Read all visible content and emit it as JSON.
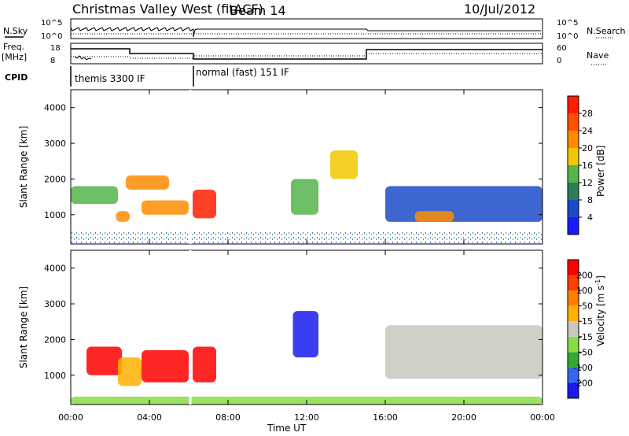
{
  "header": {
    "title": "Christmas Valley West (fitACF)",
    "beam": "Beam 14",
    "date": "10/Jul/2012"
  },
  "panels": {
    "nsky_label": "N.Sky",
    "nsky_ticks": [
      "10^5",
      "10^0"
    ],
    "nsearch_label": "N.Search",
    "nsearch_ticks": [
      "10^5",
      "10^0"
    ],
    "freq_label": "Freq.",
    "freq_unit": "[MHz]",
    "freq_ticks": [
      "18",
      "8"
    ],
    "nave_label": "Nave",
    "nave_ticks": [
      "60",
      "0"
    ],
    "cpid_label": "CPID",
    "cpid_modes": [
      "themis 3300 IF",
      "normal (fast) 151 IF"
    ]
  },
  "colorbars": {
    "power": {
      "title": "Power [dB]",
      "ticks": [
        "4",
        "8",
        "12",
        "16",
        "20",
        "24",
        "28"
      ],
      "colors": [
        "#1a1aff",
        "#1c4bc8",
        "#2b7e5a",
        "#55b44a",
        "#f0c800",
        "#ff8c00",
        "#ff5000",
        "#ff1e00"
      ]
    },
    "velocity": {
      "title": "Velocity [m s",
      "title_exp": "-1",
      "title_end": "]",
      "ticks": [
        "200",
        "100",
        "50",
        "15",
        "-15",
        "-50",
        "-100",
        "-200"
      ],
      "colors": [
        "#1a1aee",
        "#3366ee",
        "#33aa33",
        "#88dd44",
        "#c8c8c0",
        "#ffb000",
        "#ff8000",
        "#ff4000",
        "#ff0000"
      ]
    }
  },
  "chart_data": {
    "type": "heatmap",
    "xlabel": "Time UT",
    "x_ticks": [
      "00:00",
      "04:00",
      "08:00",
      "12:00",
      "16:00",
      "20:00",
      "00:00"
    ],
    "xlim_hours": [
      0,
      24
    ],
    "ylabel": "Slant Range [km]",
    "y_ticks": [
      1000,
      2000,
      3000,
      4000
    ],
    "ylim_km": [
      180,
      4500
    ],
    "mode_change_hour": 6.1,
    "search_mode_change_hour": 15.1,
    "scatter_regions_power": [
      {
        "t0": 0.0,
        "t1": 2.4,
        "r0": 1300,
        "r1": 1800,
        "level": "green"
      },
      {
        "t0": 2.3,
        "t1": 3.0,
        "r0": 800,
        "r1": 1100,
        "level": "orange"
      },
      {
        "t0": 2.8,
        "t1": 5.0,
        "r0": 1700,
        "r1": 2100,
        "level": "orange"
      },
      {
        "t0": 3.6,
        "t1": 6.0,
        "r0": 1000,
        "r1": 1400,
        "level": "orange"
      },
      {
        "t0": 6.2,
        "t1": 7.4,
        "r0": 900,
        "r1": 1700,
        "level": "red"
      },
      {
        "t0": 11.2,
        "t1": 12.6,
        "r0": 1000,
        "r1": 2000,
        "level": "green"
      },
      {
        "t0": 13.2,
        "t1": 14.6,
        "r0": 2000,
        "r1": 2800,
        "level": "yellow"
      },
      {
        "t0": 16.0,
        "t1": 24.0,
        "r0": 800,
        "r1": 1800,
        "level": "blue"
      },
      {
        "t0": 17.5,
        "t1": 19.5,
        "r0": 800,
        "r1": 1100,
        "level": "orange"
      }
    ],
    "scatter_regions_velocity": [
      {
        "t0": 0.8,
        "t1": 2.6,
        "r0": 1000,
        "r1": 1800,
        "level": "-200"
      },
      {
        "t0": 2.4,
        "t1": 3.6,
        "r0": 700,
        "r1": 1500,
        "level": "-50"
      },
      {
        "t0": 3.6,
        "t1": 6.0,
        "r0": 800,
        "r1": 1700,
        "level": "-200"
      },
      {
        "t0": 6.2,
        "t1": 7.4,
        "r0": 800,
        "r1": 1800,
        "level": "-200"
      },
      {
        "t0": 11.3,
        "t1": 12.6,
        "r0": 1500,
        "r1": 2800,
        "level": "200"
      },
      {
        "t0": 16.0,
        "t1": 24.0,
        "r0": 900,
        "r1": 2400,
        "level": "0"
      },
      {
        "t0": 0.0,
        "t1": 24.0,
        "r0": 180,
        "r1": 400,
        "level": "50"
      }
    ]
  }
}
